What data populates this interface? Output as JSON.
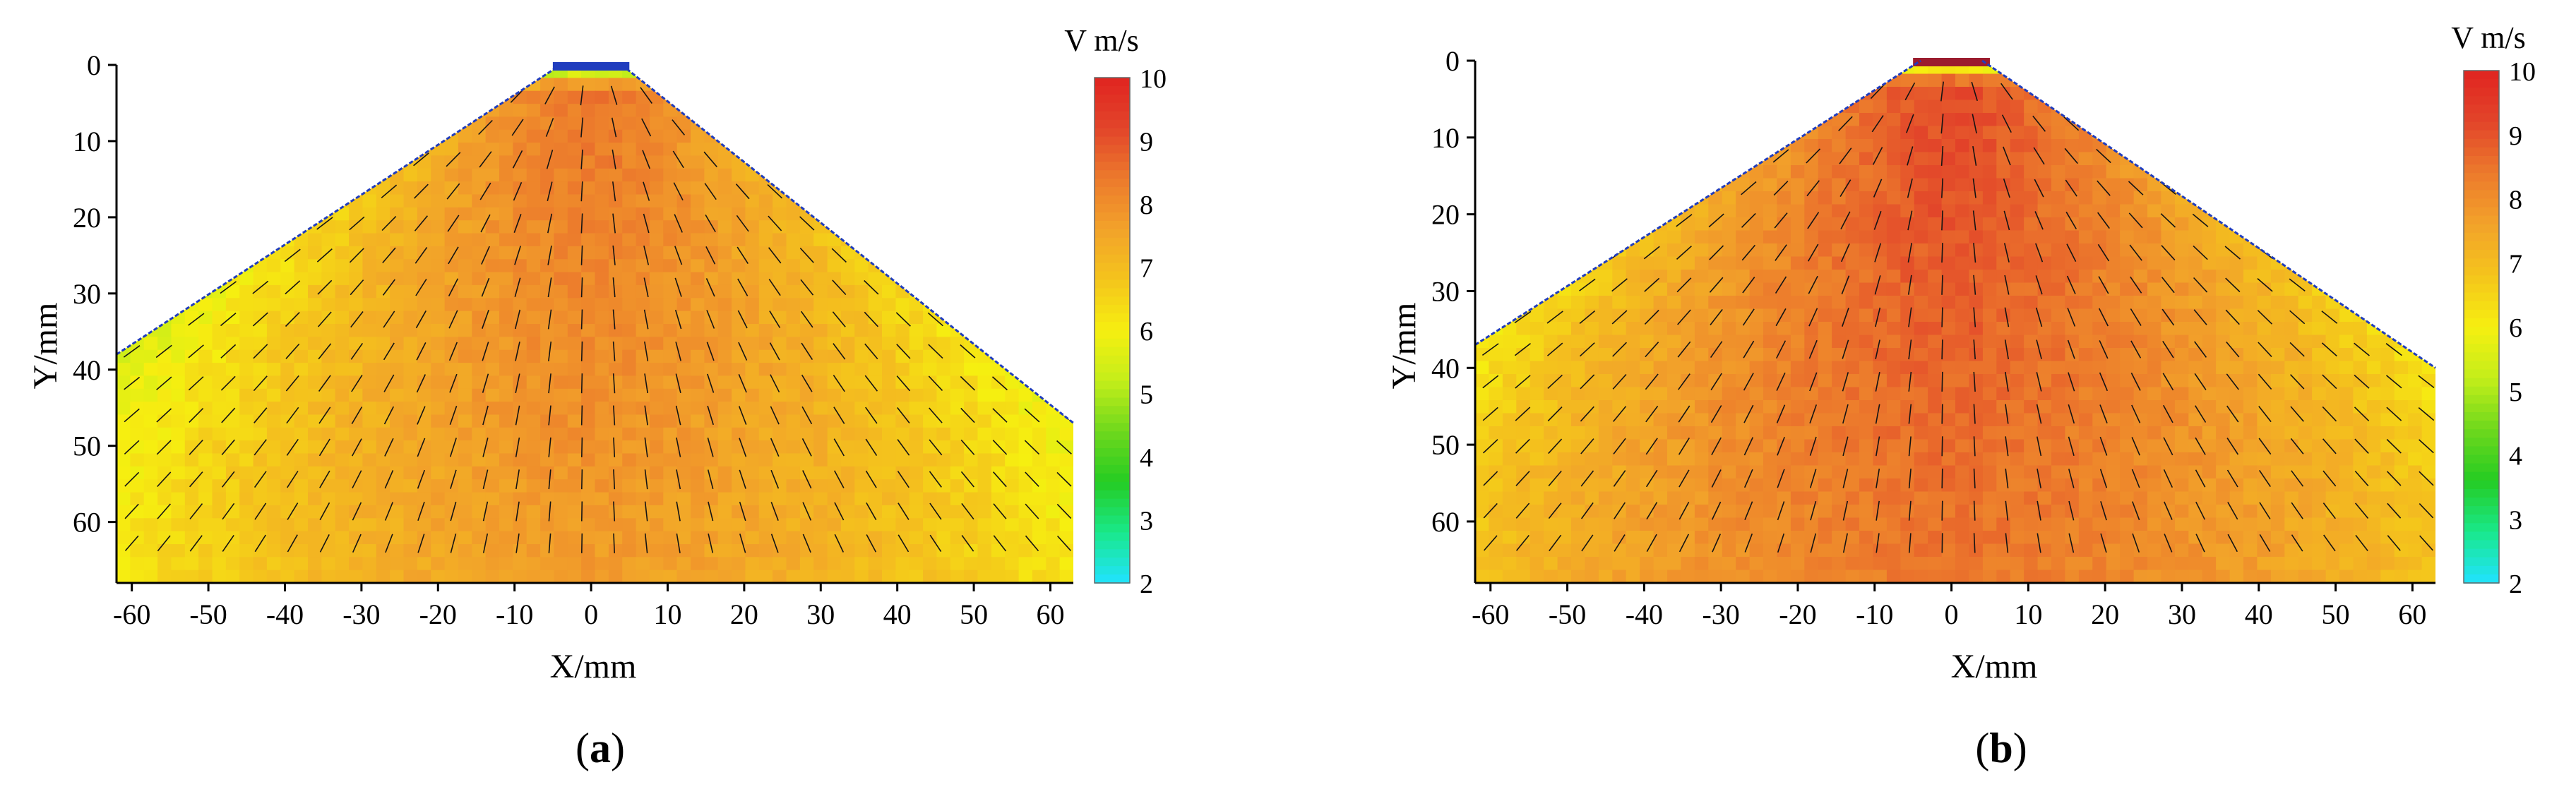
{
  "colors": {
    "scale": [
      "#21e3ff",
      "#19e88a",
      "#25cc22",
      "#6fd81c",
      "#c4ee1a",
      "#f6ef10",
      "#f4c41c",
      "#f2a22a",
      "#ec7a2c",
      "#e2452a",
      "#e02420"
    ],
    "mask_top_left": "#9b1c2e",
    "outline": "#203dbe",
    "arrow": "#141414"
  },
  "chart_data": [
    {
      "type": "heatmap",
      "panel_label": "(a)",
      "panel_letter": "a",
      "xlabel": "X/mm",
      "ylabel": "Y/mm",
      "x_ticks": [
        "-60",
        "-50",
        "-40",
        "-30",
        "-20",
        "-10",
        "0",
        "10",
        "20",
        "30",
        "40",
        "50",
        "60"
      ],
      "y_ticks": [
        "0",
        "10",
        "20",
        "30",
        "40",
        "50",
        "60"
      ],
      "xlim": [
        -62,
        63
      ],
      "ylim": [
        0,
        68
      ],
      "y_axis_inverted": true,
      "colorbar": {
        "title": "V m/s",
        "range": [
          2,
          10
        ],
        "ticks": [
          "10",
          "9",
          "8",
          "7",
          "6",
          "5",
          "4",
          "3",
          "2"
        ]
      },
      "field": {
        "peak_velocity": 8.5,
        "nozzle_width": 10,
        "edge_left": [
          [
            -62,
            38
          ],
          [
            -2,
            0
          ]
        ],
        "edge_right": [
          [
            2,
            0
          ],
          [
            63,
            47
          ]
        ]
      },
      "vectors": "radial from nozzle at x=0, y=0"
    },
    {
      "type": "heatmap",
      "panel_label": "(b)",
      "panel_letter": "b",
      "xlabel": "X/mm",
      "ylabel": "Y/mm",
      "x_ticks": [
        "-60",
        "-50",
        "-40",
        "-30",
        "-20",
        "-10",
        "0",
        "10",
        "20",
        "30",
        "40",
        "50",
        "60"
      ],
      "y_ticks": [
        "0",
        "10",
        "20",
        "30",
        "40",
        "50",
        "60"
      ],
      "xlim": [
        -62,
        63
      ],
      "ylim": [
        0,
        68
      ],
      "y_axis_inverted": true,
      "colorbar": {
        "title": "V m/s",
        "range": [
          2,
          10
        ],
        "ticks": [
          "10",
          "9",
          "8",
          "7",
          "6",
          "5",
          "4",
          "3",
          "2"
        ]
      },
      "field": {
        "peak_velocity": 9.2,
        "nozzle_width": 10,
        "edge_left": [
          [
            -62,
            37
          ],
          [
            -2,
            0
          ]
        ],
        "edge_right": [
          [
            2,
            0
          ],
          [
            63,
            40
          ]
        ]
      },
      "vectors": "radial from nozzle at x=0, y=0"
    }
  ]
}
